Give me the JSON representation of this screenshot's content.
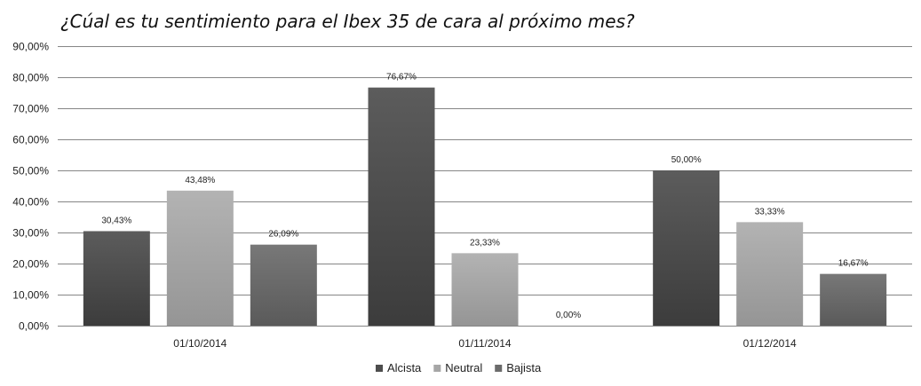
{
  "chart_data": {
    "type": "bar",
    "title": "¿Cúal es tu sentimiento para el Ibex 35 de cara al próximo mes?",
    "xlabel": "",
    "ylabel": "",
    "categories": [
      "01/10/2014",
      "01/11/2014",
      "01/12/2014"
    ],
    "series": [
      {
        "name": "Alcista",
        "values": [
          30.43,
          76.67,
          50.0
        ],
        "labels": [
          "30,43%",
          "76,67%",
          "50,00%"
        ],
        "color": "#4d4d4d"
      },
      {
        "name": "Neutral",
        "values": [
          43.48,
          23.33,
          33.33
        ],
        "labels": [
          "43,48%",
          "23,33%",
          "33,33%"
        ],
        "color": "#a6a6a6"
      },
      {
        "name": "Bajista",
        "values": [
          26.09,
          0.0,
          16.67
        ],
        "labels": [
          "26,09%",
          "0,00%",
          "16,67%"
        ],
        "color": "#6b6b6b"
      }
    ],
    "ylim": [
      0,
      90
    ],
    "yticks": [
      0,
      10,
      20,
      30,
      40,
      50,
      60,
      70,
      80,
      90
    ],
    "ytick_labels": [
      "0,00%",
      "10,00%",
      "20,00%",
      "30,00%",
      "40,00%",
      "50,00%",
      "60,00%",
      "70,00%",
      "80,00%",
      "90,00%"
    ],
    "grid": true,
    "legend_position": "bottom"
  }
}
